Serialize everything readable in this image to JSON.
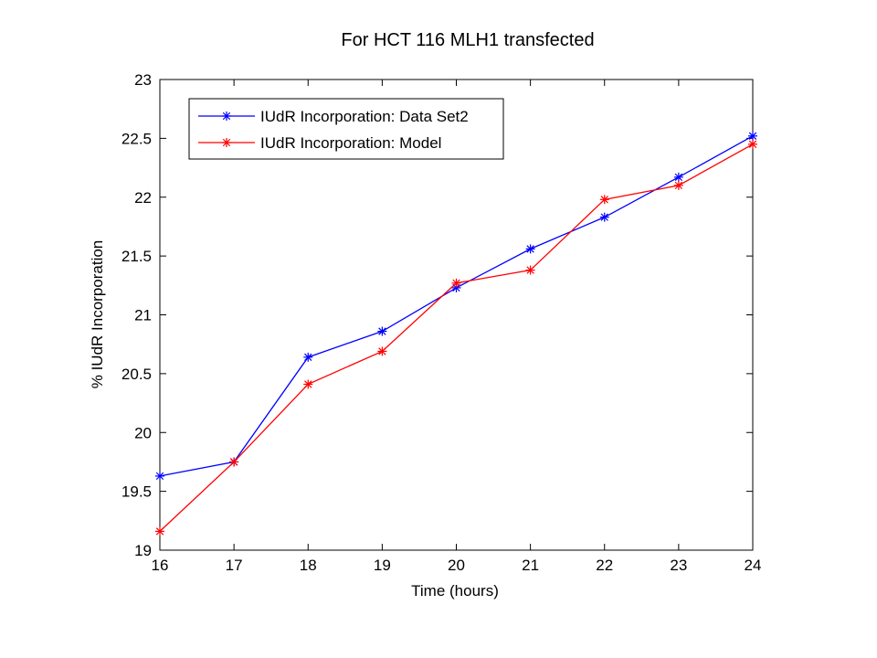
{
  "slide": {
    "title": "For HCT 116 MLH1 transfected"
  },
  "chart_data": {
    "type": "line",
    "xlabel": "Time (hours)",
    "ylabel": "% IUdR Incorporation",
    "xlim": [
      16,
      24
    ],
    "ylim": [
      19,
      23
    ],
    "xticks": [
      16,
      17,
      18,
      19,
      20,
      21,
      22,
      23,
      24
    ],
    "yticks": [
      19,
      19.5,
      20,
      20.5,
      21,
      21.5,
      22,
      22.5,
      23
    ],
    "grid": false,
    "legend": "top-left",
    "x": [
      16,
      17,
      18,
      19,
      20,
      21,
      22,
      23,
      24
    ],
    "series": [
      {
        "name": "IUdR Incorporation: Data Set2",
        "color": "#0000ff",
        "marker": "asterisk",
        "values": [
          19.63,
          19.75,
          20.64,
          20.86,
          21.23,
          21.56,
          21.83,
          22.17,
          22.52
        ]
      },
      {
        "name": "IUdR Incorporation: Model",
        "color": "#ff0000",
        "marker": "asterisk",
        "values": [
          19.16,
          19.75,
          20.41,
          20.69,
          21.27,
          21.38,
          21.98,
          22.1,
          22.45
        ]
      }
    ]
  }
}
